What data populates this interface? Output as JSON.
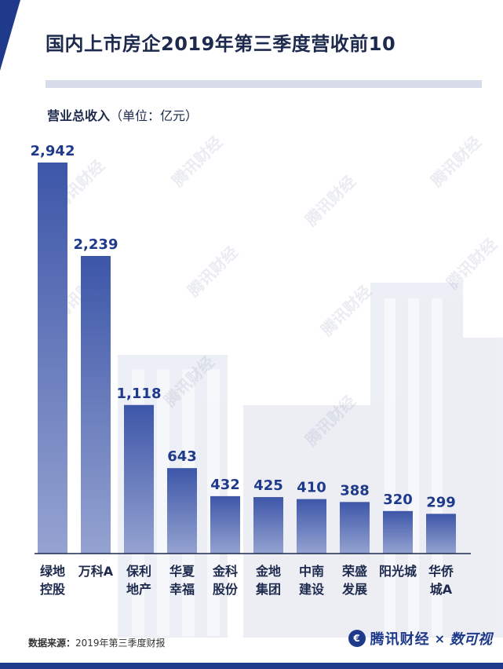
{
  "title": "国内上市房企2019年第三季度营收前10",
  "unit_label": {
    "bold": "营业总收入",
    "rest": "（单位：亿元）"
  },
  "source": {
    "label": "数据来源：",
    "text": "2019年第三季度财报"
  },
  "brand": {
    "name": "腾讯财经",
    "separator": "×",
    "partner": "数可视"
  },
  "watermark_text": "腾讯财经",
  "colors": {
    "accent": "#1f3a8a",
    "bar_top": "#3d56a8",
    "bar_bottom": "#95a3d1",
    "text": "#1d2a4d"
  },
  "chart_data": {
    "type": "bar",
    "categories": [
      [
        "绿地",
        "控股"
      ],
      [
        "万科A",
        ""
      ],
      [
        "保利",
        "地产"
      ],
      [
        "华夏",
        "幸福"
      ],
      [
        "金科",
        "股份"
      ],
      [
        "金地",
        "集团"
      ],
      [
        "中南",
        "建设"
      ],
      [
        "荣盛",
        "发展"
      ],
      [
        "阳光城",
        ""
      ],
      [
        "华侨",
        "城A"
      ]
    ],
    "values": [
      2942,
      2239,
      1118,
      643,
      432,
      425,
      410,
      388,
      320,
      299
    ],
    "value_labels": [
      "2,942",
      "2,239",
      "1,118",
      "643",
      "432",
      "425",
      "410",
      "388",
      "320",
      "299"
    ],
    "ylabel": "营业总收入（单位：亿元）",
    "ylim": [
      0,
      2942
    ],
    "grid": false,
    "legend": "none"
  }
}
